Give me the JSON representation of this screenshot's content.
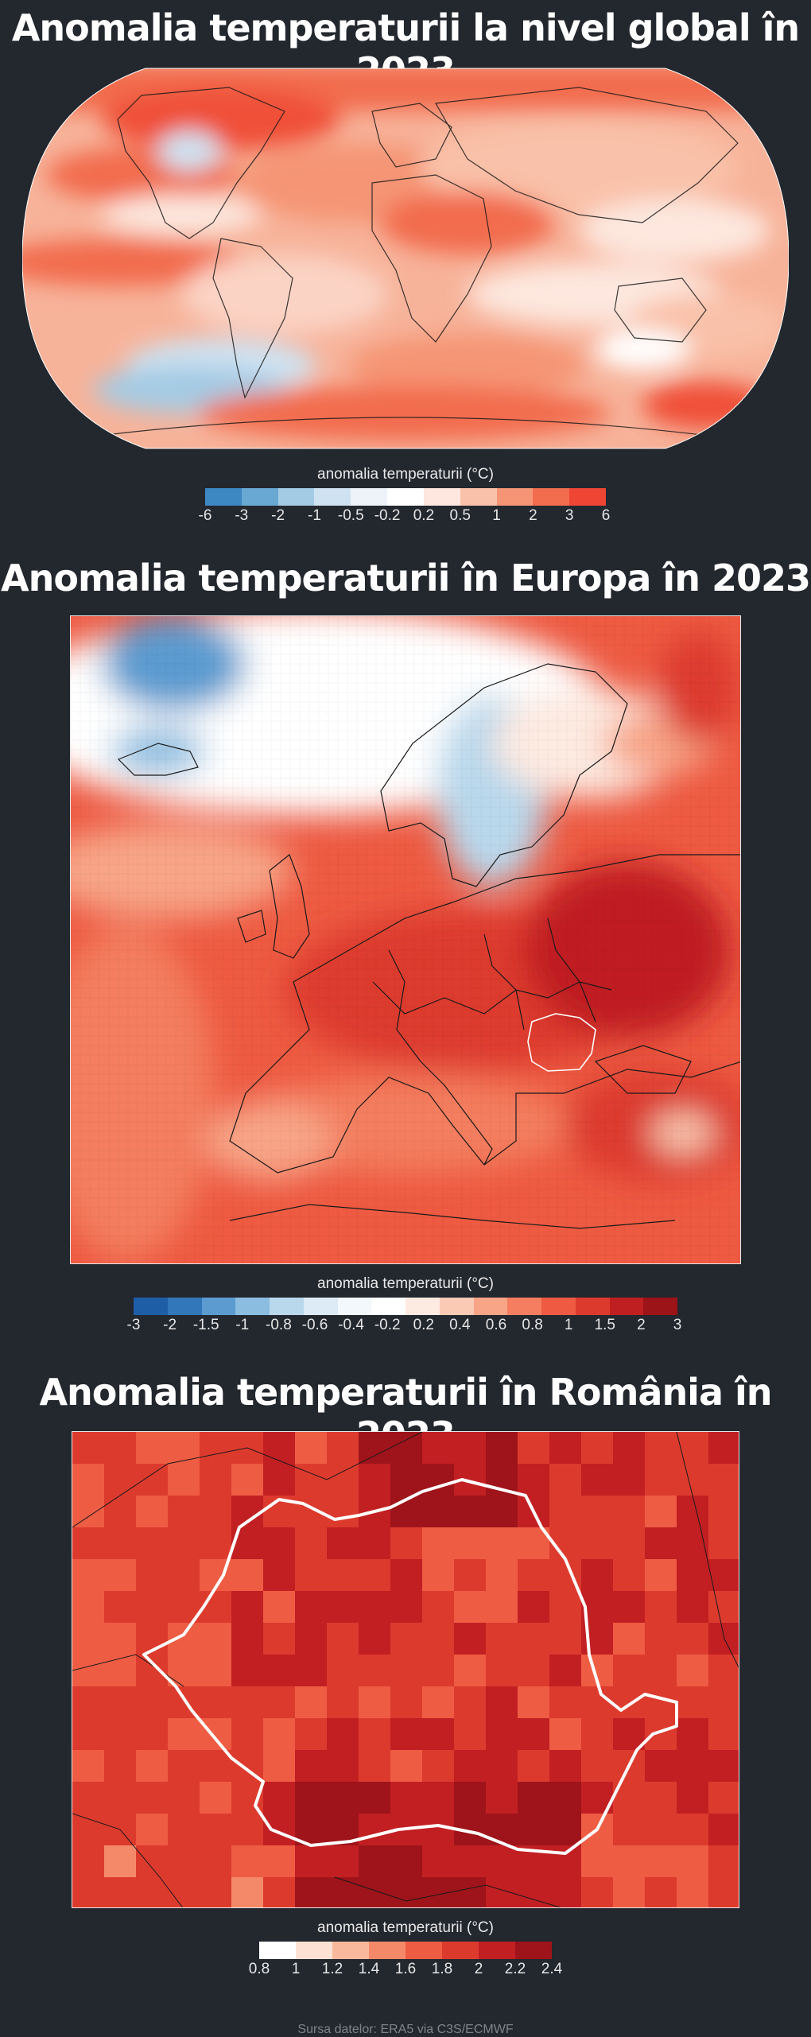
{
  "global": {
    "title": "Anomalia temperaturii la nivel global în 2023",
    "colorbar_label": "anomalia temperaturii (°C)",
    "ticks": [
      "-6",
      "-3",
      "-2",
      "-1",
      "-0.5",
      "-0.2",
      "0.2",
      "0.5",
      "1",
      "2",
      "3",
      "6"
    ],
    "colors": [
      "#3d87c2",
      "#6aa8d4",
      "#a4cbe4",
      "#cfe2f1",
      "#eef3f9",
      "#ffffff",
      "#fde7de",
      "#f9c1a9",
      "#f59575",
      "#f26c4e",
      "#ef4534"
    ]
  },
  "europe": {
    "title": "Anomalia temperaturii în Europa în 2023",
    "colorbar_label": "anomalia temperaturii (°C)",
    "ticks": [
      "-3",
      "-2",
      "-1.5",
      "-1",
      "-0.8",
      "-0.6",
      "-0.4",
      "-0.2",
      "0.2",
      "0.4",
      "0.6",
      "0.8",
      "1",
      "1.5",
      "2",
      "3"
    ],
    "colors": [
      "#1e5ea6",
      "#3277b9",
      "#5b9bd0",
      "#8bbde0",
      "#b9d8ec",
      "#dcebf6",
      "#f3f8fc",
      "#ffffff",
      "#fdeae1",
      "#fbcab4",
      "#f8a487",
      "#f47e5f",
      "#ee5a42",
      "#dd3a2e",
      "#c01f21",
      "#9c1318"
    ]
  },
  "romania": {
    "title": "Anomalia temperaturii în România în 2023",
    "colorbar_label": "anomalia temperaturii (°C)",
    "ticks": [
      "0.8",
      "1",
      "1.2",
      "1.4",
      "1.6",
      "1.8",
      "2",
      "2.2",
      "2.4"
    ],
    "colors": [
      "#ffffff",
      "#fde2d3",
      "#f9b89b",
      "#f4896a",
      "#ee5c43",
      "#dd3a2e",
      "#c21f23",
      "#9e141a"
    ]
  },
  "source": "Sursa datelor: ERA5 via C3S/ECMWF"
}
